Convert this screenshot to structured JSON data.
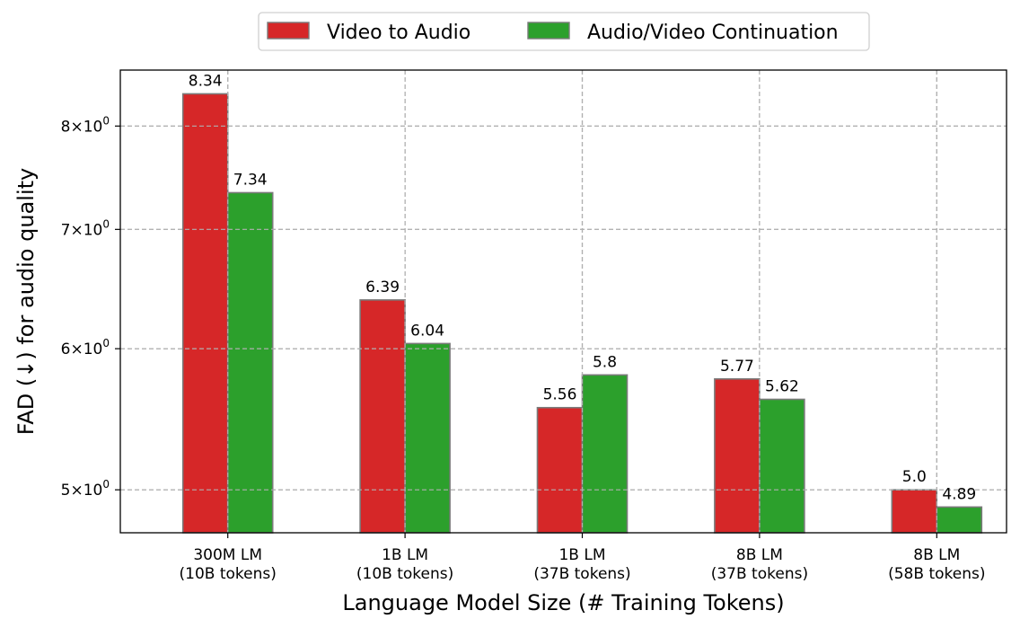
{
  "chart_data": {
    "type": "bar",
    "xlabel": "Language Model Size (# Training Tokens)",
    "ylabel": "FAD (↓) for audio quality",
    "categories": [
      [
        "300M LM",
        "(10B tokens)"
      ],
      [
        "1B LM",
        "(10B tokens)"
      ],
      [
        "1B LM",
        "(37B tokens)"
      ],
      [
        "8B LM",
        "(37B tokens)"
      ],
      [
        "8B LM",
        "(58B tokens)"
      ]
    ],
    "series": [
      {
        "name": "Video to Audio",
        "color": "#d62728",
        "values": [
          8.34,
          6.39,
          5.56,
          5.77,
          5.0
        ],
        "labels": [
          "8.34",
          "6.39",
          "5.56",
          "5.77",
          "5.0"
        ]
      },
      {
        "name": "Audio/Video Continuation",
        "color": "#2ca02c",
        "values": [
          7.34,
          6.04,
          5.8,
          5.62,
          4.89
        ],
        "labels": [
          "7.34",
          "6.04",
          "5.8",
          "5.62",
          "4.89"
        ]
      }
    ],
    "yscale": "log",
    "ylim": [
      4.73,
      8.6
    ],
    "yticks": [
      {
        "value": 5,
        "base": "5",
        "mant": "10",
        "exp": "0"
      },
      {
        "value": 6,
        "base": "6",
        "mant": "10",
        "exp": "0"
      },
      {
        "value": 7,
        "base": "7",
        "mant": "10",
        "exp": "0"
      },
      {
        "value": 8,
        "base": "8",
        "mant": "10",
        "exp": "0"
      }
    ],
    "grid": true,
    "legend_position": "top-center"
  }
}
